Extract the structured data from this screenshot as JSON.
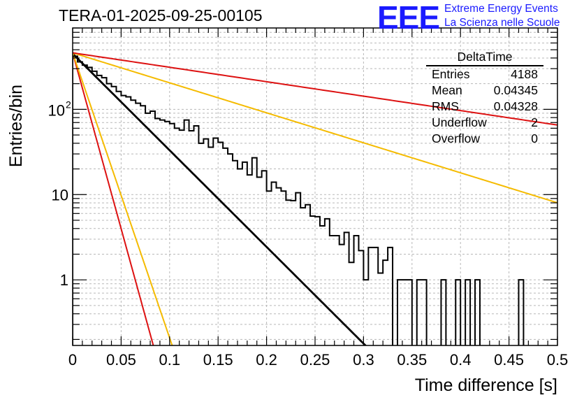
{
  "header": {
    "run_title": "TERA-01-2025-09-25-00105",
    "logo_text": "EEE",
    "logo_line1": "Extreme Energy Events",
    "logo_line2": "La Scienza nelle Scuole"
  },
  "stats_box": {
    "title": "DeltaTime",
    "rows": [
      {
        "label": "Entries",
        "value": "4188"
      },
      {
        "label": "Mean",
        "value": "0.04345"
      },
      {
        "label": "RMS",
        "value": "0.04328"
      },
      {
        "label": "Underflow",
        "value": "2"
      },
      {
        "label": "Overflow",
        "value": "0"
      }
    ]
  },
  "chart_data": {
    "type": "histogram",
    "title": "TERA-01-2025-09-25-00105",
    "xlabel": "Time difference [s]",
    "ylabel": "Entries/bin",
    "xlim": [
      0,
      0.5
    ],
    "ylim": [
      0.17,
      900
    ],
    "yscale": "log",
    "grid": true,
    "legend": "stats box top-right",
    "x_ticks": [
      "0",
      "0.05",
      "0.1",
      "0.15",
      "0.2",
      "0.25",
      "0.3",
      "0.35",
      "0.4",
      "0.45",
      "0.5"
    ],
    "y_ticks": [
      {
        "value": 1,
        "label": "1"
      },
      {
        "value": 10,
        "label": "10"
      },
      {
        "value": 100,
        "label": "10",
        "sup": "2"
      }
    ],
    "bin_width": 0.005,
    "histogram_values": [
      420,
      360,
      330,
      310,
      280,
      250,
      235,
      200,
      185,
      162,
      145,
      140,
      128,
      118,
      110,
      90,
      95,
      78,
      75,
      72,
      68,
      60,
      57,
      75,
      56,
      64,
      40,
      45,
      36,
      46,
      41,
      35,
      30,
      25,
      20,
      24,
      17,
      27,
      16,
      19,
      11,
      14,
      12,
      11,
      8.6,
      8.5,
      10.5,
      7.0,
      7.6,
      5.6,
      5.5,
      4.3,
      5.2,
      3.3,
      3.3,
      2.6,
      3.6,
      1.6,
      3.3,
      2.2,
      1.0,
      2.4,
      2.4,
      1.2,
      1.7,
      2.4,
      0.03,
      1.0,
      1.0,
      1.0,
      0.03,
      1.0,
      1.0,
      0.03,
      0.03,
      0.03,
      1.0,
      0.03,
      0.03,
      1.0,
      0.03,
      1.0,
      0.03,
      1.0,
      0.03,
      0.03,
      0.03,
      0.03,
      0.03,
      0.03,
      0.03,
      0.03,
      1.0,
      0.03,
      0.03,
      0.03,
      0.03,
      0.03,
      0.03,
      0.03
    ],
    "series": [
      {
        "name": "exponential fit",
        "color": "#000000",
        "amplitude": 450,
        "slope_per_s": -26.1,
        "x_range": [
          0,
          0.34
        ]
      },
      {
        "name": "reference fast (red)",
        "color": "#dd1111",
        "amplitude": 460,
        "slope_per_s": -95.0,
        "x_range": [
          0,
          0.2
        ]
      },
      {
        "name": "reference fast (yellow)",
        "color": "#f5bb00",
        "amplitude": 460,
        "slope_per_s": -77.0,
        "x_range": [
          0,
          0.2
        ]
      },
      {
        "name": "reference slow (yellow)",
        "color": "#f5bb00",
        "amplitude": 460,
        "slope_per_s": -8.1,
        "x_range": [
          0,
          0.5
        ]
      },
      {
        "name": "reference slow (red)",
        "color": "#dd1111",
        "amplitude": 460,
        "slope_per_s": -3.9,
        "x_range": [
          0,
          0.5
        ]
      }
    ]
  }
}
